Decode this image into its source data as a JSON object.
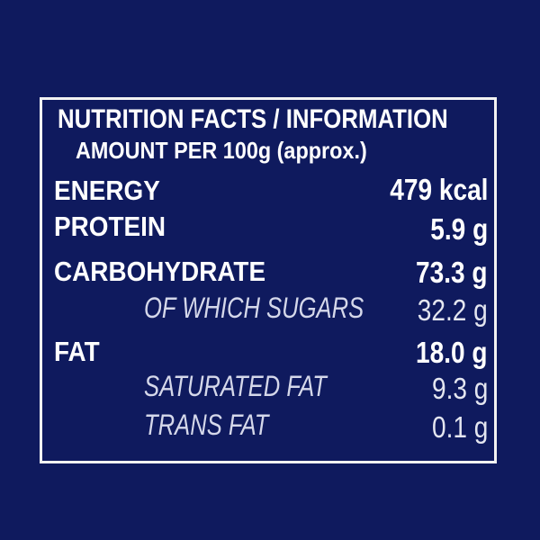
{
  "label": {
    "title": "NUTRITION FACTS / INFORMATION",
    "subtitle": "AMOUNT PER 100g (approx.)",
    "rows": [
      {
        "name": "ENERGY",
        "value": "479 kcal"
      },
      {
        "name": "PROTEIN",
        "value": "5.9 g"
      },
      {
        "name": "CARBOHYDRATE",
        "value": "73.3 g"
      },
      {
        "name": "OF WHICH SUGARS",
        "value": "32.2 g"
      },
      {
        "name": "FAT",
        "value": "18.0 g"
      },
      {
        "name": "SATURATED FAT",
        "value": "9.3 g"
      },
      {
        "name": "TRANS FAT",
        "value": "0.1 g"
      }
    ]
  },
  "colors": {
    "background": "#0f1a5e",
    "text": "#ffffff"
  }
}
